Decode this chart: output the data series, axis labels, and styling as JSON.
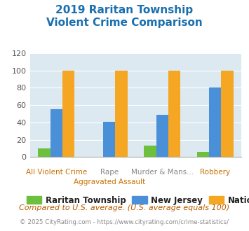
{
  "title_line1": "2019 Raritan Township",
  "title_line2": "Violent Crime Comparison",
  "top_labels": [
    "",
    "Rape",
    "Murder & Mans...",
    ""
  ],
  "bottom_labels": [
    "All Violent Crime",
    "Aggravated Assault",
    "",
    "Robbery"
  ],
  "raritan": [
    10,
    0,
    13,
    6
  ],
  "nj": [
    55,
    41,
    49,
    80
  ],
  "national": [
    100,
    100,
    100,
    100
  ],
  "raritan_color": "#6dbf3e",
  "nj_color": "#4a90d9",
  "national_color": "#f5a623",
  "title_color": "#1a6faf",
  "background_color": "#dce9f0",
  "ylim": [
    0,
    120
  ],
  "yticks": [
    0,
    20,
    40,
    60,
    80,
    100,
    120
  ],
  "legend_labels": [
    "Raritan Township",
    "New Jersey",
    "National"
  ],
  "footnote1": "Compared to U.S. average. (U.S. average equals 100)",
  "footnote2": "© 2025 CityRating.com - https://www.cityrating.com/crime-statistics/",
  "footnote1_color": "#b85c00",
  "footnote2_color": "#888888",
  "top_label_color": "#888888",
  "bottom_label_color": "#c87000"
}
